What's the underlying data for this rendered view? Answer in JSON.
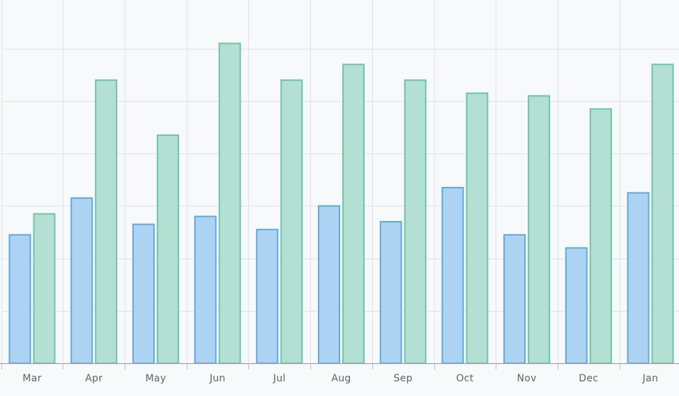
{
  "chart_data": {
    "type": "bar",
    "categories": [
      "Mar",
      "Apr",
      "May",
      "Jun",
      "Jul",
      "Aug",
      "Sep",
      "Oct",
      "Nov",
      "Dec",
      "Jan"
    ],
    "series": [
      {
        "values": [
          24.5,
          31.5,
          26.5,
          28,
          25.5,
          30,
          27,
          33.5,
          24.5,
          22,
          32.5
        ]
      },
      {
        "values": [
          28.5,
          54,
          43.5,
          61,
          54,
          57,
          54,
          51.5,
          51,
          48.5,
          57
        ]
      }
    ],
    "ylim": [
      0,
      70
    ],
    "yticks": [
      0,
      10,
      20,
      30,
      40,
      50,
      60,
      70
    ],
    "grid": true,
    "legend": "none",
    "colors": {
      "series1_fill": "#acd3f2",
      "series1_stroke": "#5ea9dc",
      "series2_fill": "#b3e0d2",
      "series2_stroke": "#6cc4a6"
    }
  }
}
